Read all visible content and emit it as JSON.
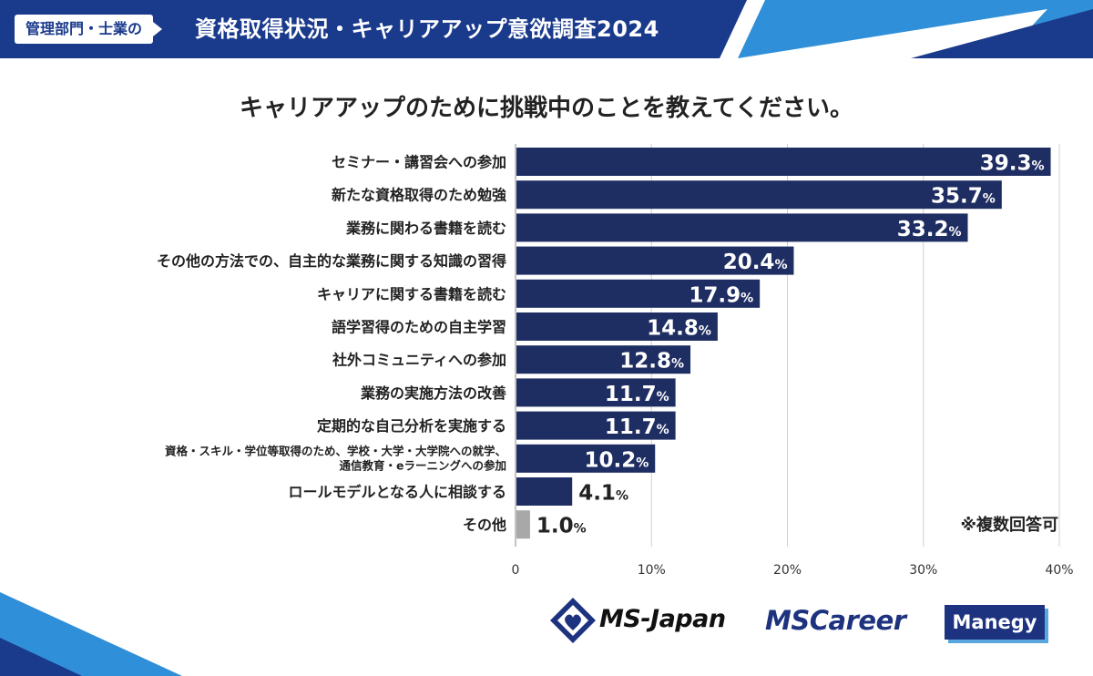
{
  "banner": {
    "badge": "管理部門・士業の",
    "title": "資格取得状況・キャリアアップ意欲調査2024",
    "colors": {
      "primary": "#1a3a8c",
      "accent": "#2f8fd8"
    }
  },
  "note": "※複数回答可",
  "logos": {
    "ms_japan": "MS-Japan",
    "ms_career": "MSCareer",
    "manegy": "Manegy"
  },
  "chart_data": {
    "type": "bar",
    "orientation": "horizontal",
    "title": "キャリアアップのために挑戦中のことを教えてください。",
    "categories": [
      "セミナー・講習会への参加",
      "新たな資格取得のため勉強",
      "業務に関わる書籍を読む",
      "その他の方法での、自主的な業務に関する知識の習得",
      "キャリアに関する書籍を読む",
      "語学習得のための自主学習",
      "社外コミュニティへの参加",
      "業務の実施方法の改善",
      "定期的な自己分析を実施する",
      [
        "資格・スキル・学位等取得のため、学校・大学・大学院への就学、",
        "通信教育・eラーニングへの参加"
      ],
      "ロールモデルとなる人に相談する",
      "その他"
    ],
    "values": [
      39.3,
      35.7,
      33.2,
      20.4,
      17.9,
      14.8,
      12.8,
      11.7,
      11.7,
      10.2,
      4.1,
      1.0
    ],
    "value_labels": [
      "39.3",
      "35.7",
      "33.2",
      "20.4",
      "17.9",
      "14.8",
      "12.8",
      "11.7",
      "11.7",
      "10.2",
      "4.1",
      "1.0"
    ],
    "value_suffix": "%",
    "xlim": [
      0,
      40
    ],
    "xticks": [
      "0",
      "10%",
      "20%",
      "30%",
      "40%"
    ],
    "colors": {
      "bar": "#1f2e62",
      "other_bar": "#a8a8a8",
      "grid": "#d0d0d0"
    },
    "grid": true
  }
}
